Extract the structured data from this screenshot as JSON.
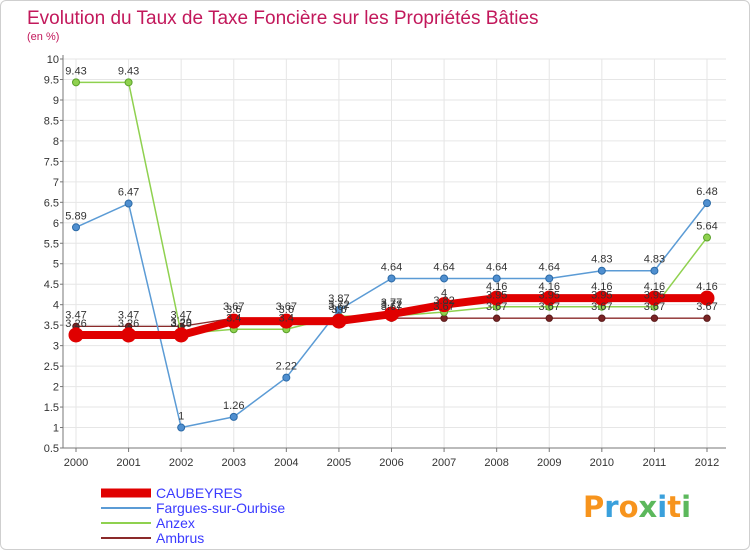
{
  "chart_data": {
    "type": "line",
    "title": "Evolution du Taux de Taxe Foncière sur les Propriétés Bâties",
    "subtitle": "(en %)",
    "x": [
      "2000",
      "2001",
      "2002",
      "2003",
      "2004",
      "2005",
      "2006",
      "2007",
      "2008",
      "2009",
      "2010",
      "2011",
      "2012"
    ],
    "ylim": [
      0.5,
      10
    ],
    "yticks": [
      "0.5",
      "1",
      "1.5",
      "2",
      "2.5",
      "3",
      "3.5",
      "4",
      "4.5",
      "5",
      "5.5",
      "6",
      "6.5",
      "7",
      "7.5",
      "8",
      "8.5",
      "9",
      "9.5",
      "10"
    ],
    "grid": true,
    "series": [
      {
        "name": "CAUBEYRES",
        "color": "#e00000",
        "values": [
          3.26,
          3.26,
          3.26,
          3.6,
          3.6,
          3.6,
          3.77,
          4.0,
          4.16,
          4.16,
          4.16,
          4.16,
          4.16
        ],
        "labels": [
          "3.26",
          "3.26",
          "3.26",
          "3.6",
          "3.6",
          "3.6",
          "3.77",
          "4",
          "4.16",
          "4.16",
          "4.16",
          "4.16",
          "4.16"
        ]
      },
      {
        "name": "Fargues-sur-Ourbise",
        "color": "#5b9bd5",
        "values": [
          5.89,
          6.47,
          1.0,
          1.26,
          2.22,
          3.87,
          4.64,
          4.64,
          4.64,
          4.64,
          4.83,
          4.83,
          6.48
        ],
        "labels": [
          "5.89",
          "6.47",
          "1",
          "1.26",
          "2.22",
          "3.87",
          "4.64",
          "4.64",
          "4.64",
          "4.64",
          "4.83",
          "4.83",
          "6.48"
        ]
      },
      {
        "name": "Anzex",
        "color": "#8fd14f",
        "values": [
          9.43,
          9.43,
          3.29,
          3.4,
          3.4,
          3.72,
          3.72,
          3.82,
          3.95,
          3.95,
          3.95,
          3.95,
          5.64
        ],
        "labels": [
          "9.43",
          "9.43",
          "3.29",
          "3.4",
          "3.4",
          "3.72",
          "3.72",
          "3.82",
          "3.95",
          "3.95",
          "3.95",
          "3.95",
          "5.64"
        ]
      },
      {
        "name": "Ambrus",
        "color": "#8b2a2a",
        "values": [
          3.47,
          3.47,
          3.47,
          3.67,
          3.67,
          3.67,
          3.67,
          3.67,
          3.67,
          3.67,
          3.67,
          3.67,
          3.67
        ],
        "labels": [
          "3.47",
          "3.47",
          "3.47",
          "3.67",
          "3.67",
          "3.67",
          "3.67",
          "3.67",
          "3.67",
          "3.67",
          "3.67",
          "3.67",
          "3.67"
        ]
      }
    ],
    "legend_position": "bottom-left"
  },
  "branding": {
    "logo_letters": [
      "P",
      "r",
      "o",
      "x",
      "i",
      "t",
      "i"
    ],
    "logo_colors": [
      "#f7941d",
      "#3aa0dc",
      "#f7941d",
      "#5cb85c",
      "#3aa0dc",
      "#f7941d",
      "#5cb85c"
    ]
  },
  "colors": {
    "title": "#c2185b",
    "axis": "#777777",
    "grid": "#e6e6e6",
    "tick_text": "#333333",
    "legend_text": "#3a3aff"
  }
}
